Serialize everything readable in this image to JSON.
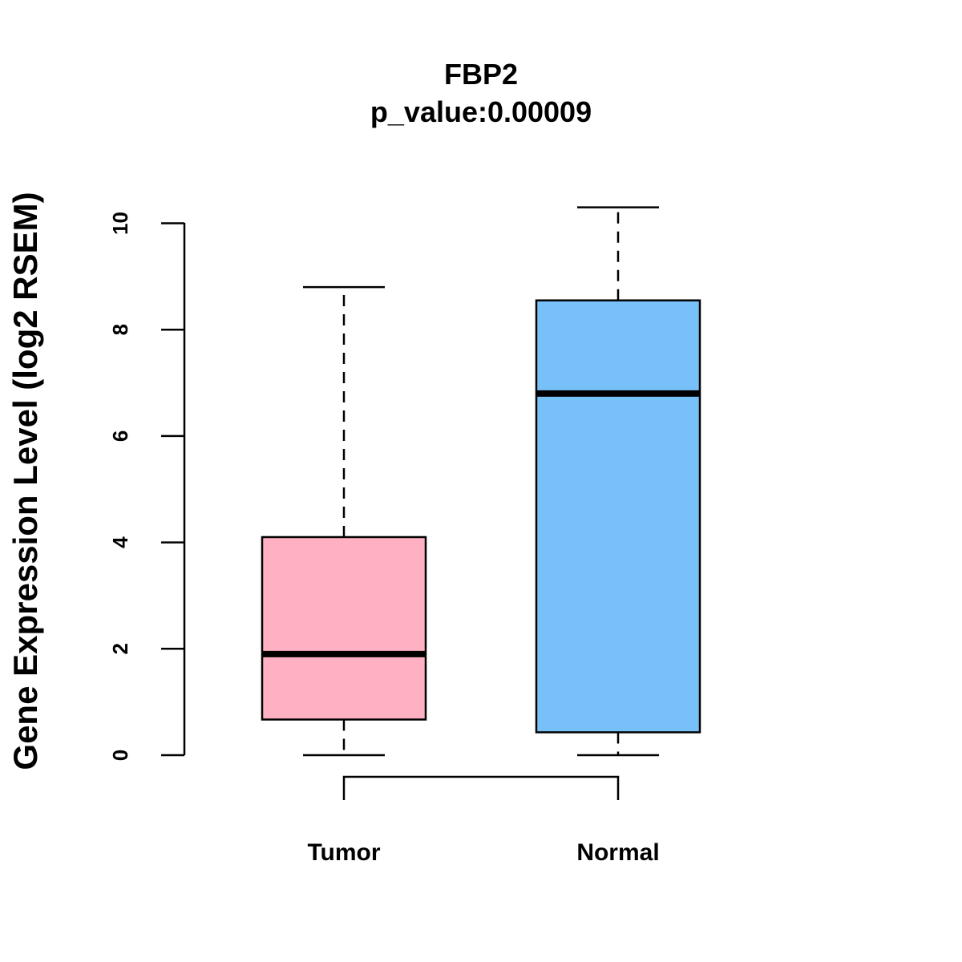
{
  "chart_data": {
    "type": "box",
    "title": "FBP2",
    "subtitle": "p_value:0.00009",
    "xlabel": "",
    "ylabel": "Gene Expression Level (log2 RSEM)",
    "ylim": [
      0,
      10.3
    ],
    "yticks": [
      0,
      2,
      4,
      6,
      8,
      10
    ],
    "ytick_labels": [
      "0",
      "2",
      "4",
      "6",
      "8",
      "10"
    ],
    "grid": false,
    "legend": "none",
    "categories": [
      "Tumor",
      "Normal"
    ],
    "boxes": [
      {
        "category": "Tumor",
        "whisker_low": 0.0,
        "q1": 0.67,
        "median": 1.9,
        "q3": 4.1,
        "whisker_high": 8.8,
        "color": "#FFB0C3"
      },
      {
        "category": "Normal",
        "whisker_low": 0.0,
        "q1": 0.43,
        "median": 6.8,
        "q3": 8.55,
        "whisker_high": 10.3,
        "color": "#77C1F8"
      }
    ],
    "comparison_bracket": {
      "between": [
        "Tumor",
        "Normal"
      ]
    }
  }
}
